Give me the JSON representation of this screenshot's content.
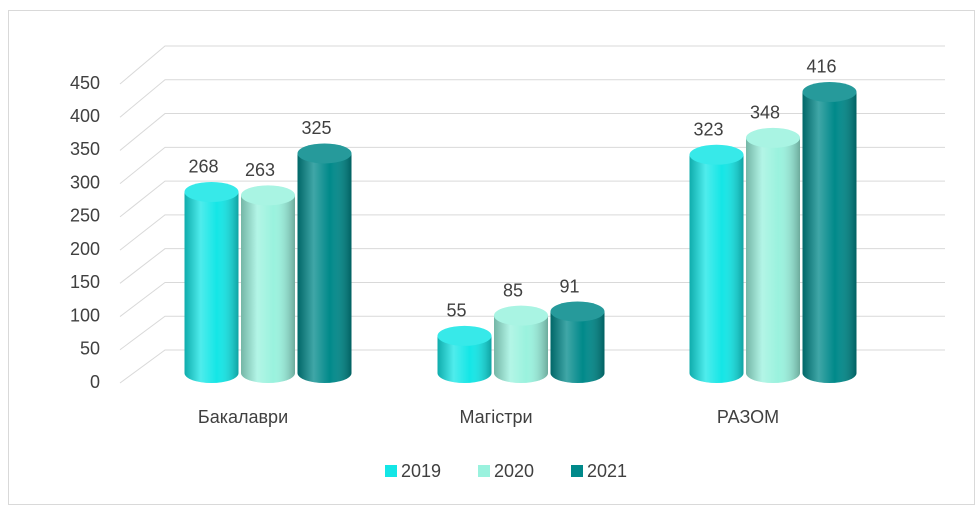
{
  "chart_data": {
    "type": "bar3d",
    "categories": [
      "Бакалаври",
      "Магістри",
      "РАЗОМ"
    ],
    "series": [
      {
        "name": "2019",
        "color": "#14e6e6",
        "values": [
          268,
          55,
          323
        ]
      },
      {
        "name": "2020",
        "color": "#9af2de",
        "values": [
          263,
          85,
          348
        ]
      },
      {
        "name": "2021",
        "color": "#00898a",
        "values": [
          325,
          91,
          416
        ]
      }
    ],
    "ylim": [
      0,
      450
    ],
    "yticks": [
      0,
      50,
      100,
      150,
      200,
      250,
      300,
      350,
      400,
      450
    ],
    "grid": true,
    "legend": "bottom"
  }
}
